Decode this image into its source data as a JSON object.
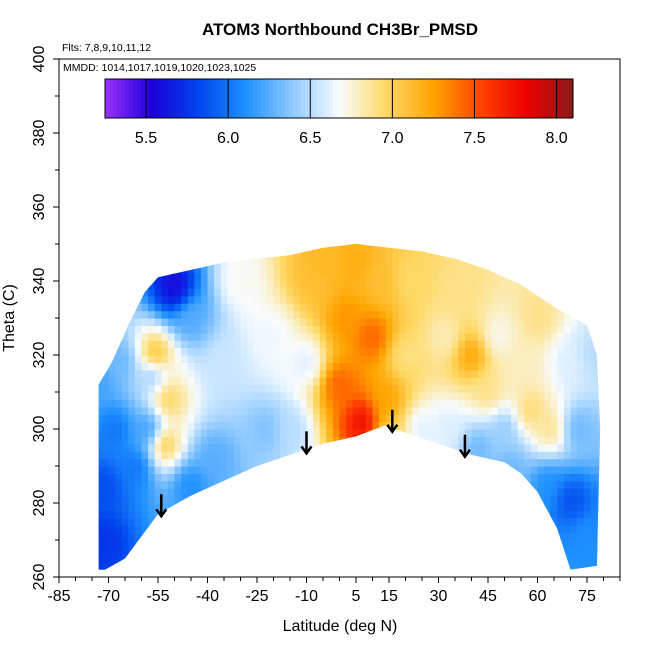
{
  "chart_data": {
    "type": "heatmap",
    "title": "ATOM3 Northbound CH3Br_PMSD",
    "annotations": [
      "Flts: 7,8,9,10,11,12",
      "MMDD: 1014,1017,1019,1020,1023,1025"
    ],
    "xlabel": "Latitude (deg N)",
    "ylabel": "Theta (C)",
    "xlim": [
      -85,
      85
    ],
    "ylim": [
      260,
      400
    ],
    "x_ticks": [
      -85,
      -70,
      -55,
      -40,
      -25,
      -10,
      5,
      15,
      30,
      45,
      60,
      75
    ],
    "y_ticks": [
      260,
      280,
      300,
      320,
      340,
      360,
      380,
      400
    ],
    "colorbar": {
      "range": [
        5.25,
        8.1
      ],
      "ticks": [
        "5.5",
        "6.0",
        "6.5",
        "7.0",
        "7.5",
        "8.0"
      ],
      "tick_values": [
        5.5,
        6.0,
        6.5,
        7.0,
        7.5,
        8.0
      ],
      "colors": [
        "#9b30ff",
        "#1c00d8",
        "#0044ee",
        "#1e90ff",
        "#8ec9ff",
        "#f8fcff",
        "#ffd966",
        "#ffa500",
        "#ff4500",
        "#ee0000",
        "#8b1a1a"
      ]
    },
    "arrows_latitude": [
      -54,
      -10,
      16,
      38
    ],
    "upper_boundary": [
      [
        -73,
        312
      ],
      [
        -69,
        318
      ],
      [
        -64,
        328
      ],
      [
        -59,
        337
      ],
      [
        -55,
        341
      ],
      [
        -45,
        343
      ],
      [
        -35,
        345
      ],
      [
        -25,
        346
      ],
      [
        -15,
        347
      ],
      [
        -5,
        349
      ],
      [
        5,
        350
      ],
      [
        15,
        349
      ],
      [
        25,
        348
      ],
      [
        35,
        346
      ],
      [
        45,
        343
      ],
      [
        55,
        339
      ],
      [
        65,
        333
      ],
      [
        75,
        328
      ],
      [
        78,
        320
      ],
      [
        79,
        300
      ]
    ],
    "lower_boundary": [
      [
        78,
        263
      ],
      [
        70,
        262
      ],
      [
        66,
        273
      ],
      [
        60,
        283
      ],
      [
        55,
        288
      ],
      [
        50,
        291
      ],
      [
        40,
        293
      ],
      [
        30,
        296
      ],
      [
        20,
        299
      ],
      [
        14,
        301
      ],
      [
        5,
        298
      ],
      [
        -5,
        296
      ],
      [
        -15,
        293
      ],
      [
        -25,
        290
      ],
      [
        -35,
        286
      ],
      [
        -45,
        282
      ],
      [
        -55,
        277
      ],
      [
        -60,
        271
      ],
      [
        -65,
        265
      ],
      [
        -71,
        262
      ],
      [
        -73,
        262
      ]
    ],
    "features": [
      {
        "lat": -73,
        "theta": 312,
        "value": 6.2
      },
      {
        "lat": -72,
        "theta": 270,
        "value": 5.75
      },
      {
        "lat": -71,
        "theta": 285,
        "value": 5.85
      },
      {
        "lat": -68,
        "theta": 300,
        "value": 6.0
      },
      {
        "lat": -66,
        "theta": 318,
        "value": 6.3
      },
      {
        "lat": -62,
        "theta": 290,
        "value": 6.0
      },
      {
        "lat": -58,
        "theta": 300,
        "value": 6.15
      },
      {
        "lat": -57,
        "theta": 315,
        "value": 6.4
      },
      {
        "lat": -56,
        "theta": 320,
        "value": 7.15
      },
      {
        "lat": -52,
        "theta": 308,
        "value": 7.0
      },
      {
        "lat": -50,
        "theta": 338,
        "value": 5.55
      },
      {
        "lat": -53,
        "theta": 296,
        "value": 7.05
      },
      {
        "lat": -45,
        "theta": 285,
        "value": 6.1
      },
      {
        "lat": -45,
        "theta": 330,
        "value": 6.25
      },
      {
        "lat": -38,
        "theta": 292,
        "value": 6.25
      },
      {
        "lat": -35,
        "theta": 318,
        "value": 6.55
      },
      {
        "lat": -30,
        "theta": 340,
        "value": 6.7
      },
      {
        "lat": -22,
        "theta": 300,
        "value": 6.35
      },
      {
        "lat": -20,
        "theta": 325,
        "value": 6.65
      },
      {
        "lat": -15,
        "theta": 300,
        "value": 6.5
      },
      {
        "lat": -10,
        "theta": 318,
        "value": 6.6
      },
      {
        "lat": -8,
        "theta": 340,
        "value": 7.1
      },
      {
        "lat": -5,
        "theta": 345,
        "value": 7.15
      },
      {
        "lat": 0,
        "theta": 312,
        "value": 7.45
      },
      {
        "lat": 2,
        "theta": 330,
        "value": 7.3
      },
      {
        "lat": 5,
        "theta": 345,
        "value": 7.2
      },
      {
        "lat": 7,
        "theta": 302,
        "value": 7.8
      },
      {
        "lat": 10,
        "theta": 325,
        "value": 7.45
      },
      {
        "lat": 12,
        "theta": 340,
        "value": 7.1
      },
      {
        "lat": 14,
        "theta": 308,
        "value": 7.25
      },
      {
        "lat": 15,
        "theta": 298,
        "value": 6.95
      },
      {
        "lat": 20,
        "theta": 320,
        "value": 6.9
      },
      {
        "lat": 22,
        "theta": 340,
        "value": 6.95
      },
      {
        "lat": 25,
        "theta": 300,
        "value": 6.6
      },
      {
        "lat": 32,
        "theta": 325,
        "value": 6.8
      },
      {
        "lat": 33,
        "theta": 300,
        "value": 6.6
      },
      {
        "lat": 36,
        "theta": 338,
        "value": 6.9
      },
      {
        "lat": 40,
        "theta": 320,
        "value": 7.25
      },
      {
        "lat": 42,
        "theta": 295,
        "value": 6.3
      },
      {
        "lat": 45,
        "theta": 310,
        "value": 6.9
      },
      {
        "lat": 48,
        "theta": 325,
        "value": 6.7
      },
      {
        "lat": 50,
        "theta": 300,
        "value": 6.4
      },
      {
        "lat": 52,
        "theta": 290,
        "value": 6.3
      },
      {
        "lat": 55,
        "theta": 318,
        "value": 6.8
      },
      {
        "lat": 58,
        "theta": 305,
        "value": 6.95
      },
      {
        "lat": 60,
        "theta": 330,
        "value": 6.9
      },
      {
        "lat": 63,
        "theta": 285,
        "value": 6.1
      },
      {
        "lat": 64,
        "theta": 300,
        "value": 6.9
      },
      {
        "lat": 70,
        "theta": 318,
        "value": 6.6
      },
      {
        "lat": 70,
        "theta": 281,
        "value": 5.85
      },
      {
        "lat": 72,
        "theta": 300,
        "value": 6.3
      },
      {
        "lat": 75,
        "theta": 270,
        "value": 6.1
      },
      {
        "lat": 77,
        "theta": 320,
        "value": 6.5
      }
    ]
  }
}
